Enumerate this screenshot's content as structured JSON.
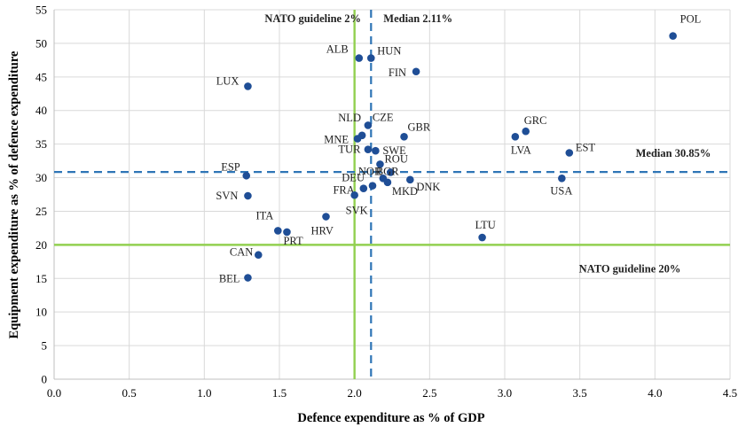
{
  "chart_data": {
    "type": "scatter",
    "title": "",
    "xlabel": "Defence expenditure as % of GDP",
    "ylabel": "Equipment expenditure as % of defence expenditure",
    "xlim": [
      0,
      4.5
    ],
    "ylim": [
      0,
      55
    ],
    "x_ticks": [
      "0.0",
      "0.5",
      "1.0",
      "1.5",
      "2.0",
      "2.5",
      "3.0",
      "3.5",
      "4.0",
      "4.5"
    ],
    "y_ticks": [
      "0",
      "5",
      "10",
      "15",
      "20",
      "25",
      "30",
      "35",
      "40",
      "45",
      "50",
      "55"
    ],
    "grid": true,
    "reference_lines": [
      {
        "id": "nato-x",
        "axis": "x",
        "value": 2.0,
        "label": "NATO guideline 2%",
        "style": "solid",
        "color": "#92d050"
      },
      {
        "id": "median-x",
        "axis": "x",
        "value": 2.11,
        "label": "Median 2.11%",
        "style": "dashed",
        "color": "#2e75b6"
      },
      {
        "id": "nato-y",
        "axis": "y",
        "value": 20,
        "label": "NATO guideline 20%",
        "style": "solid",
        "color": "#92d050"
      },
      {
        "id": "median-y",
        "axis": "y",
        "value": 30.85,
        "label": "Median 30.85%",
        "style": "dashed",
        "color": "#2e75b6"
      }
    ],
    "point_color": "#1f4e96",
    "points": [
      {
        "label": "POL",
        "x": 4.12,
        "y": 51.1
      },
      {
        "label": "ALB",
        "x": 2.03,
        "y": 47.8
      },
      {
        "label": "HUN",
        "x": 2.11,
        "y": 47.8
      },
      {
        "label": "FIN",
        "x": 2.41,
        "y": 45.8
      },
      {
        "label": "LUX",
        "x": 1.29,
        "y": 43.6
      },
      {
        "label": "CZE",
        "x": 2.09,
        "y": 37.8
      },
      {
        "label": "NLD",
        "x": 2.05,
        "y": 36.3
      },
      {
        "label": "MNE",
        "x": 2.02,
        "y": 35.8
      },
      {
        "label": "GBR",
        "x": 2.33,
        "y": 36.1
      },
      {
        "label": "TUR",
        "x": 2.09,
        "y": 34.2
      },
      {
        "label": "SWE",
        "x": 2.14,
        "y": 34.0
      },
      {
        "label": "GRC",
        "x": 3.14,
        "y": 36.9
      },
      {
        "label": "LVA",
        "x": 3.07,
        "y": 36.1
      },
      {
        "label": "EST",
        "x": 3.43,
        "y": 33.7
      },
      {
        "label": "ESP",
        "x": 1.28,
        "y": 30.3
      },
      {
        "label": "ROU",
        "x": 2.17,
        "y": 32.0
      },
      {
        "label": "NOR",
        "x": 2.24,
        "y": 30.8
      },
      {
        "label": "BGR",
        "x": 2.19,
        "y": 29.9
      },
      {
        "label": "DNK",
        "x": 2.37,
        "y": 29.7
      },
      {
        "label": "DEU",
        "x": 2.12,
        "y": 28.8
      },
      {
        "label": "MKD",
        "x": 2.22,
        "y": 29.3
      },
      {
        "label": "FRA",
        "x": 2.06,
        "y": 28.4
      },
      {
        "label": "USA",
        "x": 3.38,
        "y": 29.9
      },
      {
        "label": "SVK",
        "x": 2.0,
        "y": 27.4
      },
      {
        "label": "SVN",
        "x": 1.29,
        "y": 27.3
      },
      {
        "label": "HRV",
        "x": 1.81,
        "y": 24.2
      },
      {
        "label": "ITA",
        "x": 1.49,
        "y": 22.1
      },
      {
        "label": "PRT",
        "x": 1.55,
        "y": 21.9
      },
      {
        "label": "LTU",
        "x": 2.85,
        "y": 21.1
      },
      {
        "label": "CAN",
        "x": 1.36,
        "y": 18.5
      },
      {
        "label": "BEL",
        "x": 1.29,
        "y": 15.1
      }
    ]
  }
}
